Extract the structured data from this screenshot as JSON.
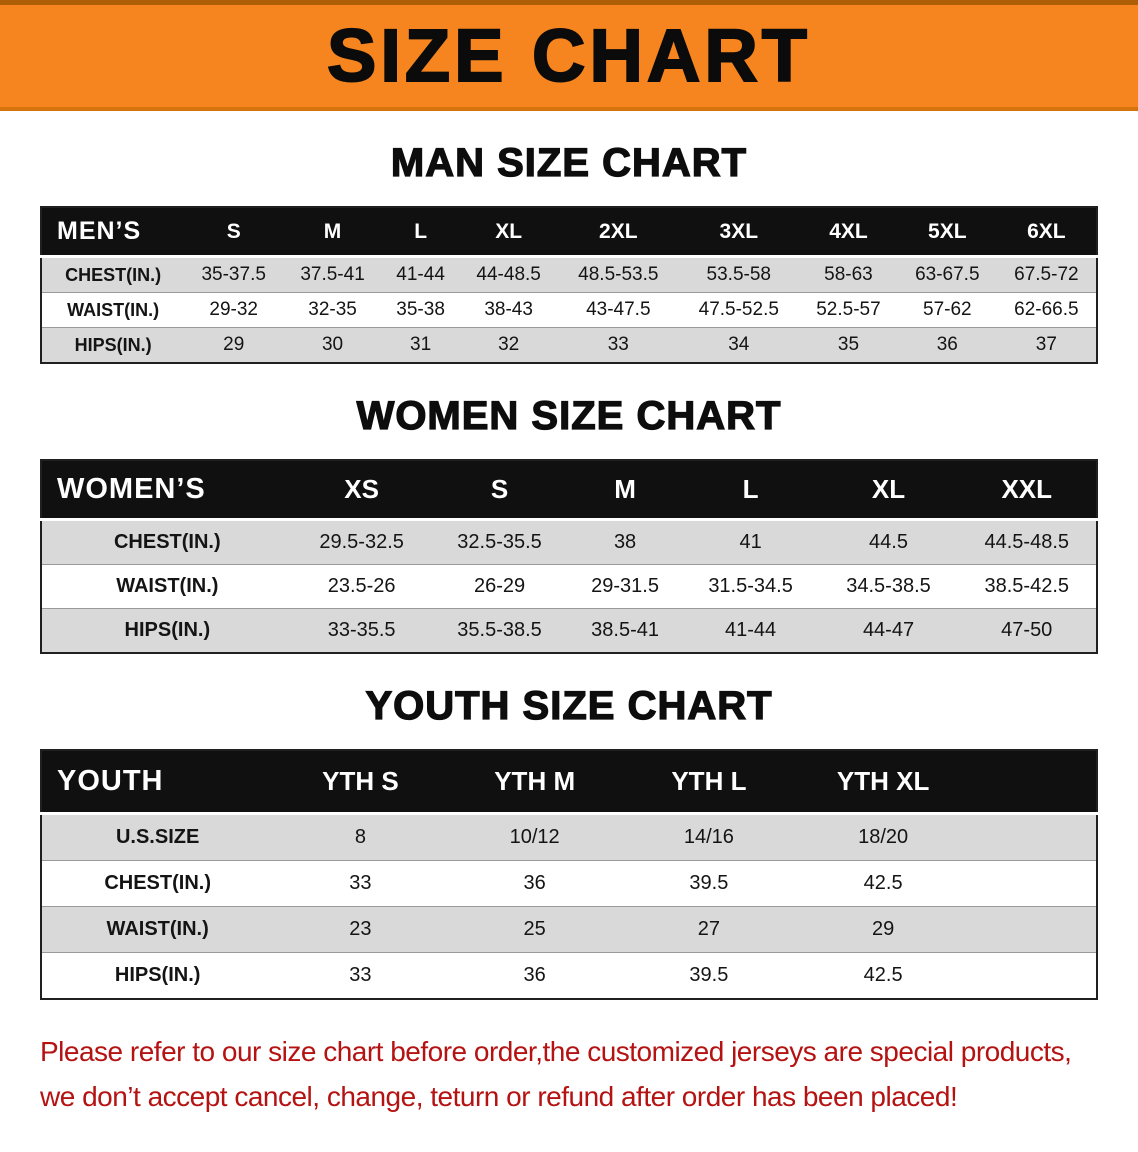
{
  "banner": {
    "title": "SIZE CHART"
  },
  "sections": [
    {
      "heading": "MAN SIZE CHART",
      "label": "MEN’S",
      "columns": [
        "S",
        "M",
        "L",
        "XL",
        "2XL",
        "3XL",
        "4XL",
        "5XL",
        "6XL"
      ],
      "rows": [
        {
          "label": "CHEST(IN.)",
          "values": [
            "35-37.5",
            "37.5-41",
            "41-44",
            "44-48.5",
            "48.5-53.5",
            "53.5-58",
            "58-63",
            "63-67.5",
            "67.5-72"
          ]
        },
        {
          "label": "WAIST(IN.)",
          "values": [
            "29-32",
            "32-35",
            "35-38",
            "38-43",
            "43-47.5",
            "47.5-52.5",
            "52.5-57",
            "57-62",
            "62-66.5"
          ]
        },
        {
          "label": "HIPS(IN.)",
          "values": [
            "29",
            "30",
            "31",
            "32",
            "33",
            "34",
            "35",
            "36",
            "37"
          ]
        }
      ]
    },
    {
      "heading": "WOMEN SIZE CHART",
      "label": "WOMEN’S",
      "columns": [
        "XS",
        "S",
        "M",
        "L",
        "XL",
        "XXL"
      ],
      "rows": [
        {
          "label": "CHEST(IN.)",
          "values": [
            "29.5-32.5",
            "32.5-35.5",
            "38",
            "41",
            "44.5",
            "44.5-48.5"
          ]
        },
        {
          "label": "WAIST(IN.)",
          "values": [
            "23.5-26",
            "26-29",
            "29-31.5",
            "31.5-34.5",
            "34.5-38.5",
            "38.5-42.5"
          ]
        },
        {
          "label": "HIPS(IN.)",
          "values": [
            "33-35.5",
            "35.5-38.5",
            "38.5-41",
            "41-44",
            "44-47",
            "47-50"
          ]
        }
      ]
    },
    {
      "heading": "YOUTH SIZE CHART",
      "label": "YOUTH",
      "columns": [
        "YTH S",
        "YTH M",
        "YTH L",
        "YTH XL"
      ],
      "rows": [
        {
          "label": "U.S.SIZE",
          "values": [
            "8",
            "10/12",
            "14/16",
            "18/20"
          ]
        },
        {
          "label": "CHEST(IN.)",
          "values": [
            "33",
            "36",
            "39.5",
            "42.5"
          ]
        },
        {
          "label": "WAIST(IN.)",
          "values": [
            "23",
            "25",
            "27",
            "29"
          ]
        },
        {
          "label": "HIPS(IN.)",
          "values": [
            "33",
            "36",
            "39.5",
            "42.5"
          ]
        }
      ]
    }
  ],
  "disclaimer": {
    "line1": "Please refer to our size chart before order,the customized jerseys are special products,",
    "line2": "we don’t accept cancel, change, teturn or refund after order has been placed!"
  },
  "colors": {
    "banner_bg": "#F6851F",
    "header_bg": "#101010",
    "stripe": "#D9D9D9",
    "disclaimer_text": "#B51212"
  }
}
